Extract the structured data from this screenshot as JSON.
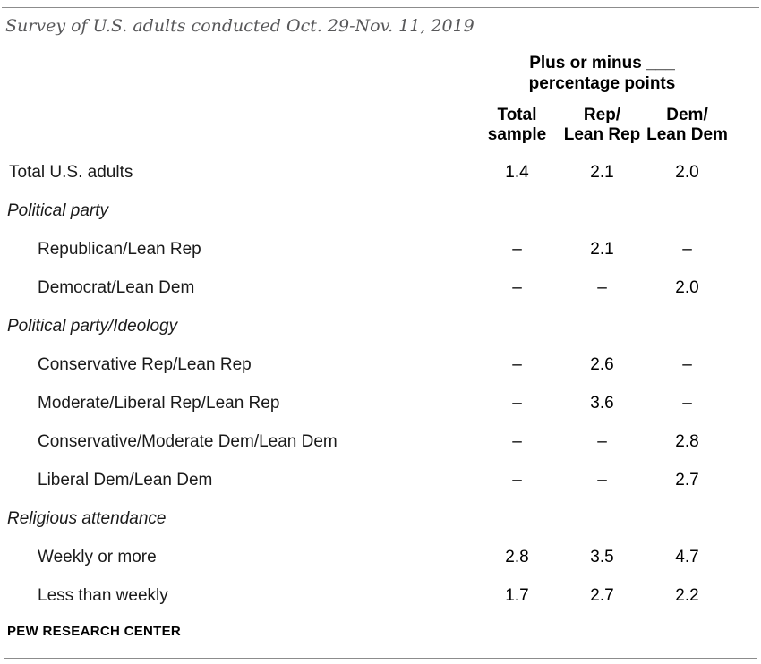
{
  "meta": {
    "subtitle": "Survey of U.S. adults conducted Oct. 29-Nov. 11, 2019",
    "source": "PEW RESEARCH CENTER"
  },
  "chart_data": {
    "type": "table",
    "title": "Plus or minus ___\npercentage points",
    "columns": [
      "Total\nsample",
      "Rep/\nLean Rep",
      "Dem/\nLean Dem"
    ],
    "rows": [
      {
        "label": "Total U.S. adults",
        "section": false,
        "indent": false,
        "values": [
          "1.4",
          "2.1",
          "2.0"
        ]
      },
      {
        "label": "Political party",
        "section": true
      },
      {
        "label": "Republican/Lean Rep",
        "section": false,
        "indent": true,
        "values": [
          "–",
          "2.1",
          "–"
        ]
      },
      {
        "label": "Democrat/Lean Dem",
        "section": false,
        "indent": true,
        "values": [
          "–",
          "–",
          "2.0"
        ]
      },
      {
        "label": "Political party/Ideology",
        "section": true
      },
      {
        "label": "Conservative Rep/Lean Rep",
        "section": false,
        "indent": true,
        "values": [
          "–",
          "2.6",
          "–"
        ]
      },
      {
        "label": "Moderate/Liberal Rep/Lean Rep",
        "section": false,
        "indent": true,
        "values": [
          "–",
          "3.6",
          "–"
        ]
      },
      {
        "label": "Conservative/Moderate Dem/Lean Dem",
        "section": false,
        "indent": true,
        "values": [
          "–",
          "–",
          "2.8"
        ]
      },
      {
        "label": "Liberal Dem/Lean Dem",
        "section": false,
        "indent": true,
        "values": [
          "–",
          "–",
          "2.7"
        ]
      },
      {
        "label": "Religious attendance",
        "section": true
      },
      {
        "label": "Weekly or more",
        "section": false,
        "indent": true,
        "values": [
          "2.8",
          "3.5",
          "4.7"
        ]
      },
      {
        "label": "Less than weekly",
        "section": false,
        "indent": true,
        "values": [
          "1.7",
          "2.7",
          "2.2"
        ]
      }
    ]
  }
}
